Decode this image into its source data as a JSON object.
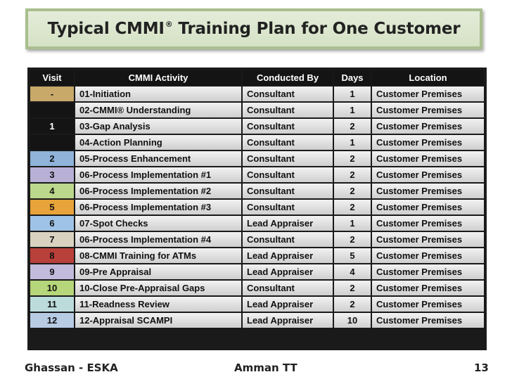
{
  "title": {
    "text": "Typical CMMI",
    "sup": "®",
    "text2": " Training Plan for One Customer"
  },
  "table": {
    "headers": [
      "Visit",
      "CMMI Activity",
      "Conducted By",
      "Days",
      "Location"
    ],
    "rows": [
      {
        "visit": "-",
        "visit_color": "#c8a96a",
        "activity": "01-Initiation",
        "conducted_by": "Consultant",
        "days": "1",
        "location": "Customer Premises"
      },
      {
        "visit": "",
        "visit_color": "",
        "activity": "02-CMMI® Understanding",
        "conducted_by": "Consultant",
        "days": "1",
        "location": "Customer Premises"
      },
      {
        "visit": "1",
        "visit_color": "#141414",
        "activity": "03-Gap Analysis",
        "conducted_by": "Consultant",
        "days": "2",
        "location": "Customer Premises"
      },
      {
        "visit": "",
        "visit_color": "",
        "activity": "04-Action  Planning",
        "conducted_by": "Consultant",
        "days": "1",
        "location": "Customer Premises"
      },
      {
        "visit": "2",
        "visit_color": "#8fb3d9",
        "activity": "05-Process Enhancement",
        "conducted_by": "Consultant",
        "days": "2",
        "location": "Customer Premises"
      },
      {
        "visit": "3",
        "visit_color": "#b9b0d6",
        "activity": "06-Process Implementation #1",
        "conducted_by": "Consultant",
        "days": "2",
        "location": "Customer Premises"
      },
      {
        "visit": "4",
        "visit_color": "#bcd88c",
        "activity": "06-Process Implementation #2",
        "conducted_by": "Consultant",
        "days": "2",
        "location": "Customer Premises"
      },
      {
        "visit": "5",
        "visit_color": "#e8a33a",
        "activity": "06-Process Implementation #3",
        "conducted_by": "Consultant",
        "days": "2",
        "location": "Customer Premises"
      },
      {
        "visit": "6",
        "visit_color": "#9fc3e6",
        "activity": "07-Spot Checks",
        "conducted_by": "Lead Appraiser",
        "days": "1",
        "location": "Customer Premises"
      },
      {
        "visit": "7",
        "visit_color": "#d9d2c0",
        "activity": "06-Process Implementation #4",
        "conducted_by": "Consultant",
        "days": "2",
        "location": "Customer Premises"
      },
      {
        "visit": "8",
        "visit_color": "#b8403a",
        "activity": "08-CMMI Training for ATMs",
        "conducted_by": "Lead Appraiser",
        "days": "5",
        "location": "Customer Premises"
      },
      {
        "visit": "9",
        "visit_color": "#c3bbdc",
        "activity": "09-Pre Appraisal",
        "conducted_by": "Lead Appraiser",
        "days": "4",
        "location": "Customer Premises"
      },
      {
        "visit": "10",
        "visit_color": "#b5d67a",
        "activity": "10-Close Pre-Appraisal Gaps",
        "conducted_by": "Consultant",
        "days": "2",
        "location": "Customer Premises"
      },
      {
        "visit": "11",
        "visit_color": "#bcdcdc",
        "activity": "11-Readness Review",
        "conducted_by": "Lead Appraiser",
        "days": "2",
        "location": "Customer Premises"
      },
      {
        "visit": "12",
        "visit_color": "#b7cbe3",
        "activity": "12-Appraisal SCAMPI",
        "conducted_by": "Lead Appraiser",
        "days": "10",
        "location": "Customer Premises"
      }
    ]
  },
  "footer": {
    "left": "Ghassan - ESKA",
    "center": "Amman TT",
    "right": "13"
  }
}
